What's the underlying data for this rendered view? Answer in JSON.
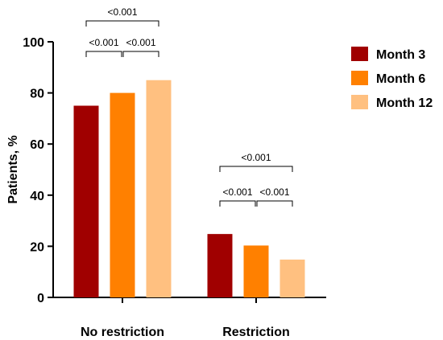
{
  "chart_data": {
    "type": "bar",
    "categories": [
      "No restriction",
      "Restriction"
    ],
    "series": [
      {
        "name": "Month 3",
        "color": "#a00000",
        "values": [
          75,
          24.8
        ]
      },
      {
        "name": "Month 6",
        "color": "#ff8000",
        "values": [
          80,
          20.3
        ]
      },
      {
        "name": "Month 12",
        "color": "#ffc080",
        "values": [
          85,
          14.8
        ]
      }
    ],
    "xlabel": "",
    "ylabel": "Patients, %",
    "ylim": [
      0,
      100
    ],
    "yticks": [
      "0",
      "20",
      "40",
      "60",
      "80",
      "100"
    ],
    "legend_position": "right",
    "grid": false,
    "significance": [
      {
        "category": 0,
        "from_series": 0,
        "to_series": 1,
        "label": "<0.001"
      },
      {
        "category": 0,
        "from_series": 1,
        "to_series": 2,
        "label": "<0.001"
      },
      {
        "category": 0,
        "from_series": 0,
        "to_series": 2,
        "label": "<0.001"
      },
      {
        "category": 1,
        "from_series": 0,
        "to_series": 1,
        "label": "<0.001"
      },
      {
        "category": 1,
        "from_series": 1,
        "to_series": 2,
        "label": "<0.001"
      },
      {
        "category": 1,
        "from_series": 0,
        "to_series": 2,
        "label": "<0.001"
      }
    ]
  }
}
